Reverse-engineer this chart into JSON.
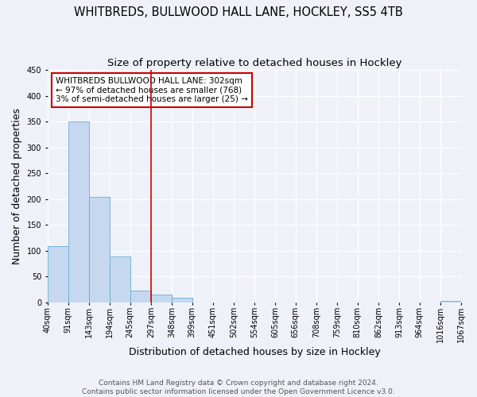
{
  "title": "WHITBREDS, BULLWOOD HALL LANE, HOCKLEY, SS5 4TB",
  "subtitle": "Size of property relative to detached houses in Hockley",
  "xlabel": "Distribution of detached houses by size in Hockley",
  "ylabel": "Number of detached properties",
  "bin_edges": [
    40,
    91,
    143,
    194,
    245,
    297,
    348,
    399,
    451,
    502,
    554,
    605,
    656,
    708,
    759,
    810,
    862,
    913,
    964,
    1016,
    1067
  ],
  "bar_heights": [
    108,
    350,
    204,
    89,
    23,
    14,
    8,
    0,
    0,
    0,
    0,
    0,
    0,
    0,
    0,
    0,
    0,
    0,
    0,
    3
  ],
  "bar_color": "#c5d8f0",
  "bar_edgecolor": "#6aabd2",
  "vline_x": 297,
  "vline_color": "#cc0000",
  "annotation_text": "WHITBREDS BULLWOOD HALL LANE: 302sqm\n← 97% of detached houses are smaller (768)\n3% of semi-detached houses are larger (25) →",
  "annotation_box_color": "white",
  "annotation_box_edgecolor": "#cc0000",
  "ylim": [
    0,
    450
  ],
  "tick_labels": [
    "40sqm",
    "91sqm",
    "143sqm",
    "194sqm",
    "245sqm",
    "297sqm",
    "348sqm",
    "399sqm",
    "451sqm",
    "502sqm",
    "554sqm",
    "605sqm",
    "656sqm",
    "708sqm",
    "759sqm",
    "810sqm",
    "862sqm",
    "913sqm",
    "964sqm",
    "1016sqm",
    "1067sqm"
  ],
  "footer_text": "Contains HM Land Registry data © Crown copyright and database right 2024.\nContains public sector information licensed under the Open Government Licence v3.0.",
  "background_color": "#eef2f8",
  "grid_color": "#ffffff",
  "title_fontsize": 10.5,
  "subtitle_fontsize": 9.5,
  "axis_label_fontsize": 9,
  "tick_fontsize": 7,
  "footer_fontsize": 6.5
}
